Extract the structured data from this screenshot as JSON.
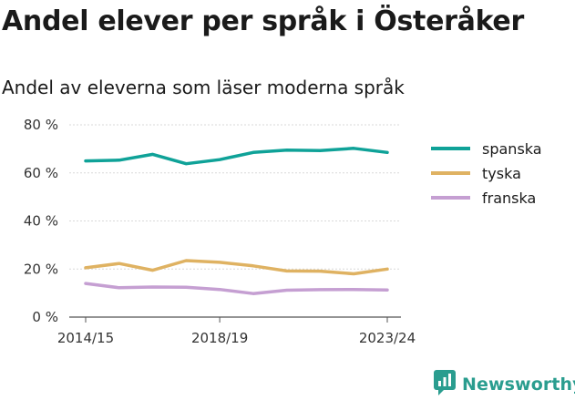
{
  "header": {
    "title": "Andel elever per språk i Österåker",
    "subtitle": "Andel av eleverna som läser moderna språk"
  },
  "brand": {
    "name": "Newsworthy",
    "icon": "newsworthy-logo-icon",
    "color": "#2a9d8f"
  },
  "chart_data": {
    "type": "line",
    "x": [
      "2014/15",
      "2015/16",
      "2016/17",
      "2017/18",
      "2018/19",
      "2019/20",
      "2020/21",
      "2021/22",
      "2022/23",
      "2023/24"
    ],
    "x_tick_labels": [
      "2014/15",
      "2018/19",
      "2023/24"
    ],
    "y_tick_labels": [
      "0 %",
      "20 %",
      "40 %",
      "60 %",
      "80 %"
    ],
    "y_ticks": [
      0,
      20,
      40,
      60,
      80
    ],
    "ylim": [
      0,
      80
    ],
    "grid": true,
    "legend_position": "right",
    "series": [
      {
        "name": "spanska",
        "color": "#0fa298",
        "values": [
          65,
          65.3,
          67.7,
          63.8,
          65.5,
          68.5,
          69.5,
          69.3,
          70.2,
          68.5
        ]
      },
      {
        "name": "tyska",
        "color": "#dfb262",
        "values": [
          20.5,
          22.3,
          19.5,
          23.5,
          22.8,
          21.3,
          19.2,
          19.1,
          18,
          20
        ]
      },
      {
        "name": "franska",
        "color": "#c59fd2",
        "values": [
          14,
          12.2,
          12.5,
          12.4,
          11.5,
          9.8,
          11.2,
          11.4,
          11.5,
          11.3
        ]
      }
    ]
  }
}
